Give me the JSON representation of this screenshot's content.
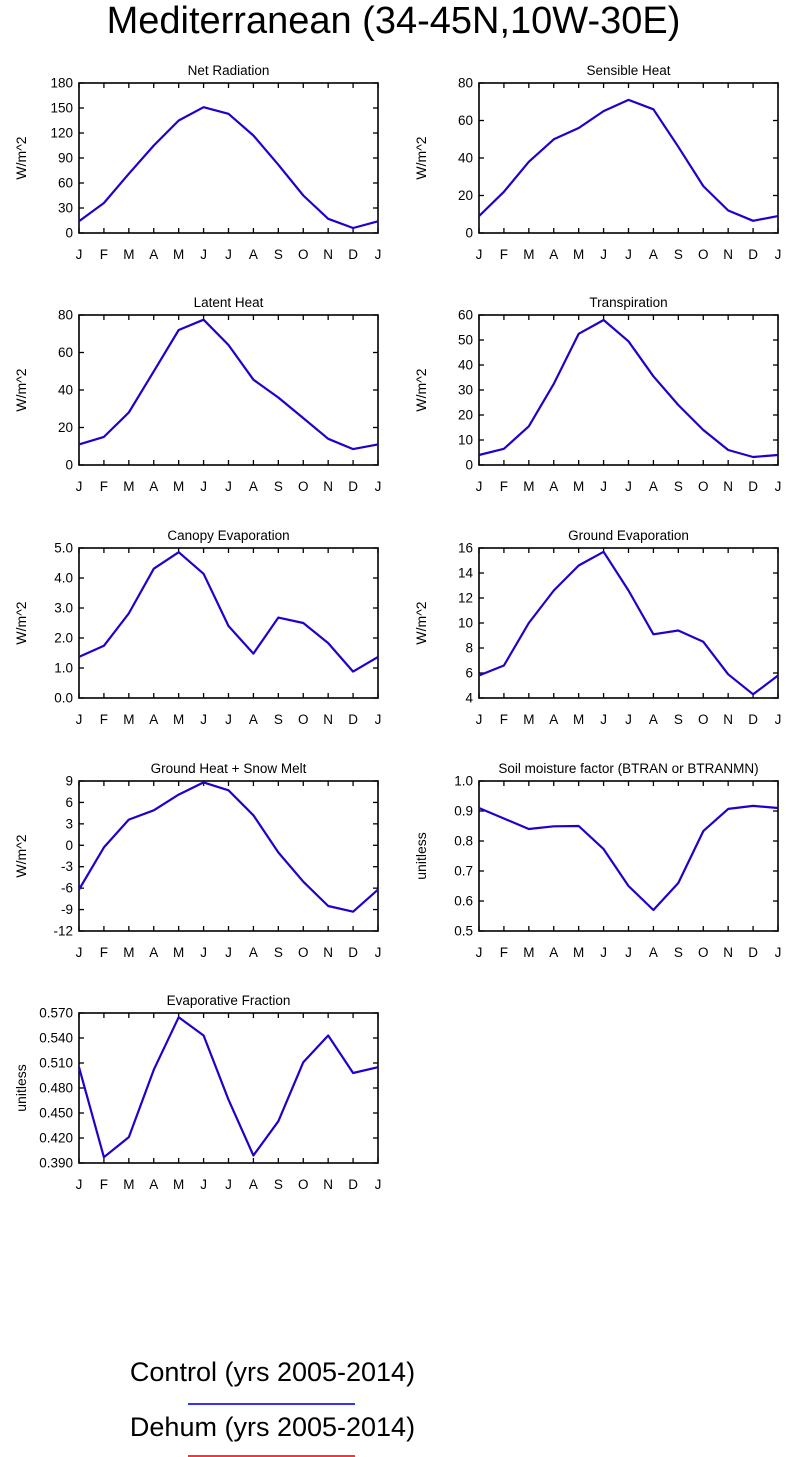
{
  "title": "Mediterranean (34-45N,10W-30E)",
  "month_labels": [
    "J",
    "F",
    "M",
    "A",
    "M",
    "J",
    "J",
    "A",
    "S",
    "O",
    "N",
    "D",
    "J"
  ],
  "legend": [
    {
      "label": "Control (yrs 2005-2014)",
      "color": "#3333ff"
    },
    {
      "label": "Dehum (yrs 2005-2014)",
      "color": "#ff3333"
    }
  ],
  "series_color": "#2200cc",
  "chart_data": [
    {
      "type": "line",
      "title": "Net Radiation",
      "ylabel": "W/m^2",
      "ylim": [
        0,
        180
      ],
      "yticks": [
        "0",
        "30",
        "60",
        "90",
        "120",
        "150",
        "180"
      ],
      "values": [
        14,
        36,
        71,
        105,
        135,
        151,
        143,
        117,
        82,
        45,
        17,
        6,
        14
      ]
    },
    {
      "type": "line",
      "title": "Sensible Heat",
      "ylabel": "W/m^2",
      "ylim": [
        0,
        80
      ],
      "yticks": [
        "0",
        "20",
        "40",
        "60",
        "80"
      ],
      "values": [
        9,
        22,
        38,
        50,
        56,
        65,
        71,
        66,
        46,
        25,
        12,
        6.5,
        9
      ]
    },
    {
      "type": "line",
      "title": "Latent Heat",
      "ylabel": "W/m^2",
      "ylim": [
        0,
        80
      ],
      "yticks": [
        "0",
        "20",
        "40",
        "60",
        "80"
      ],
      "values": [
        11,
        15,
        28,
        50,
        72,
        77.5,
        64,
        45.5,
        36,
        25,
        14,
        8.5,
        11
      ]
    },
    {
      "type": "line",
      "title": "Transpiration",
      "ylabel": "W/m^2",
      "ylim": [
        0,
        60
      ],
      "yticks": [
        "0",
        "10",
        "20",
        "30",
        "40",
        "50",
        "60"
      ],
      "values": [
        4,
        6.5,
        15.5,
        32.5,
        52.5,
        58,
        49.5,
        35.5,
        24,
        14,
        6,
        3.2,
        4
      ]
    },
    {
      "type": "line",
      "title": "Canopy Evaporation",
      "ylabel": "W/m^2",
      "ylim": [
        0,
        5
      ],
      "yticks": [
        "0.0",
        "1.0",
        "2.0",
        "3.0",
        "4.0",
        "5.0"
      ],
      "values": [
        1.37,
        1.74,
        2.82,
        4.31,
        4.86,
        4.14,
        2.4,
        1.48,
        2.68,
        2.5,
        1.83,
        0.88,
        1.37
      ]
    },
    {
      "type": "line",
      "title": "Ground Evaporation",
      "ylabel": "W/m^2",
      "ylim": [
        4,
        16
      ],
      "yticks": [
        "4",
        "6",
        "8",
        "10",
        "12",
        "14",
        "16"
      ],
      "values": [
        5.8,
        6.6,
        10,
        12.6,
        14.6,
        15.7,
        12.6,
        9.1,
        9.4,
        8.5,
        5.9,
        4.3,
        5.8
      ]
    },
    {
      "type": "line",
      "title": "Ground Heat + Snow Melt",
      "ylabel": "W/m^2",
      "ylim": [
        -12,
        9
      ],
      "yticks": [
        "-12",
        "-9",
        "-6",
        "-3",
        "0",
        "3",
        "6",
        "9"
      ],
      "values": [
        -6.2,
        -0.3,
        3.6,
        4.9,
        7.1,
        8.8,
        7.7,
        4.2,
        -1,
        -5.1,
        -8.5,
        -9.3,
        -6.2
      ]
    },
    {
      "type": "line",
      "title": "Soil moisture factor (BTRAN or BTRANMN)",
      "ylabel": "unitless",
      "ylim": [
        0.5,
        1.0
      ],
      "yticks": [
        "0.5",
        "0.6",
        "0.7",
        "0.8",
        "0.9",
        "1.0"
      ],
      "values": [
        0.91,
        0.875,
        0.84,
        0.849,
        0.85,
        0.773,
        0.65,
        0.57,
        0.66,
        0.833,
        0.907,
        0.917,
        0.91
      ]
    },
    {
      "type": "line",
      "title": "Evaporative Fraction",
      "ylabel": "unitless",
      "ylim": [
        0.39,
        0.57
      ],
      "yticks": [
        "0.390",
        "0.420",
        "0.450",
        "0.480",
        "0.510",
        "0.540",
        "0.570"
      ],
      "values": [
        0.505,
        0.397,
        0.421,
        0.502,
        0.565,
        0.543,
        0.466,
        0.399,
        0.44,
        0.511,
        0.543,
        0.498,
        0.505
      ]
    }
  ]
}
